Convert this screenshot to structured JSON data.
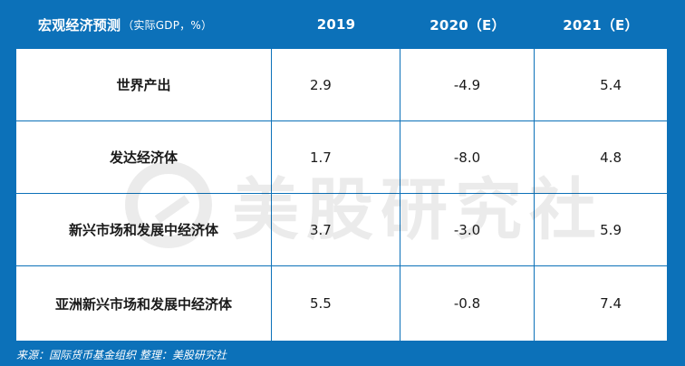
{
  "header": {
    "label_main": "宏观经济预测",
    "label_sub": "（实际GDP，%）",
    "col_2019": "2019",
    "col_2020": "2020（E）",
    "col_2021": "2021（E）"
  },
  "rows": [
    {
      "label": "世界产出",
      "v2019": "2.9",
      "v2020": "-4.9",
      "v2021": "5.4"
    },
    {
      "label": "发达经济体",
      "v2019": "1.7",
      "v2020": "-8.0",
      "v2021": "4.8"
    },
    {
      "label": "新兴市场和发展中经济体",
      "v2019": "3.7",
      "v2020": "-3.0",
      "v2021": "5.9"
    },
    {
      "label": "亚洲新兴市场和发展中经济体",
      "v2019": "5.5",
      "v2020": "-0.8",
      "v2021": "7.4"
    }
  ],
  "watermark": {
    "text": "美股研究社",
    "logo_icon": "chart-circle-icon"
  },
  "footer": {
    "source": "来源：国际货币基金组织 整理：美股研究社"
  },
  "colors": {
    "brand_blue": "#0c71b9",
    "cell_bg": "#ffffff",
    "text_dark": "#1a1a1a"
  }
}
